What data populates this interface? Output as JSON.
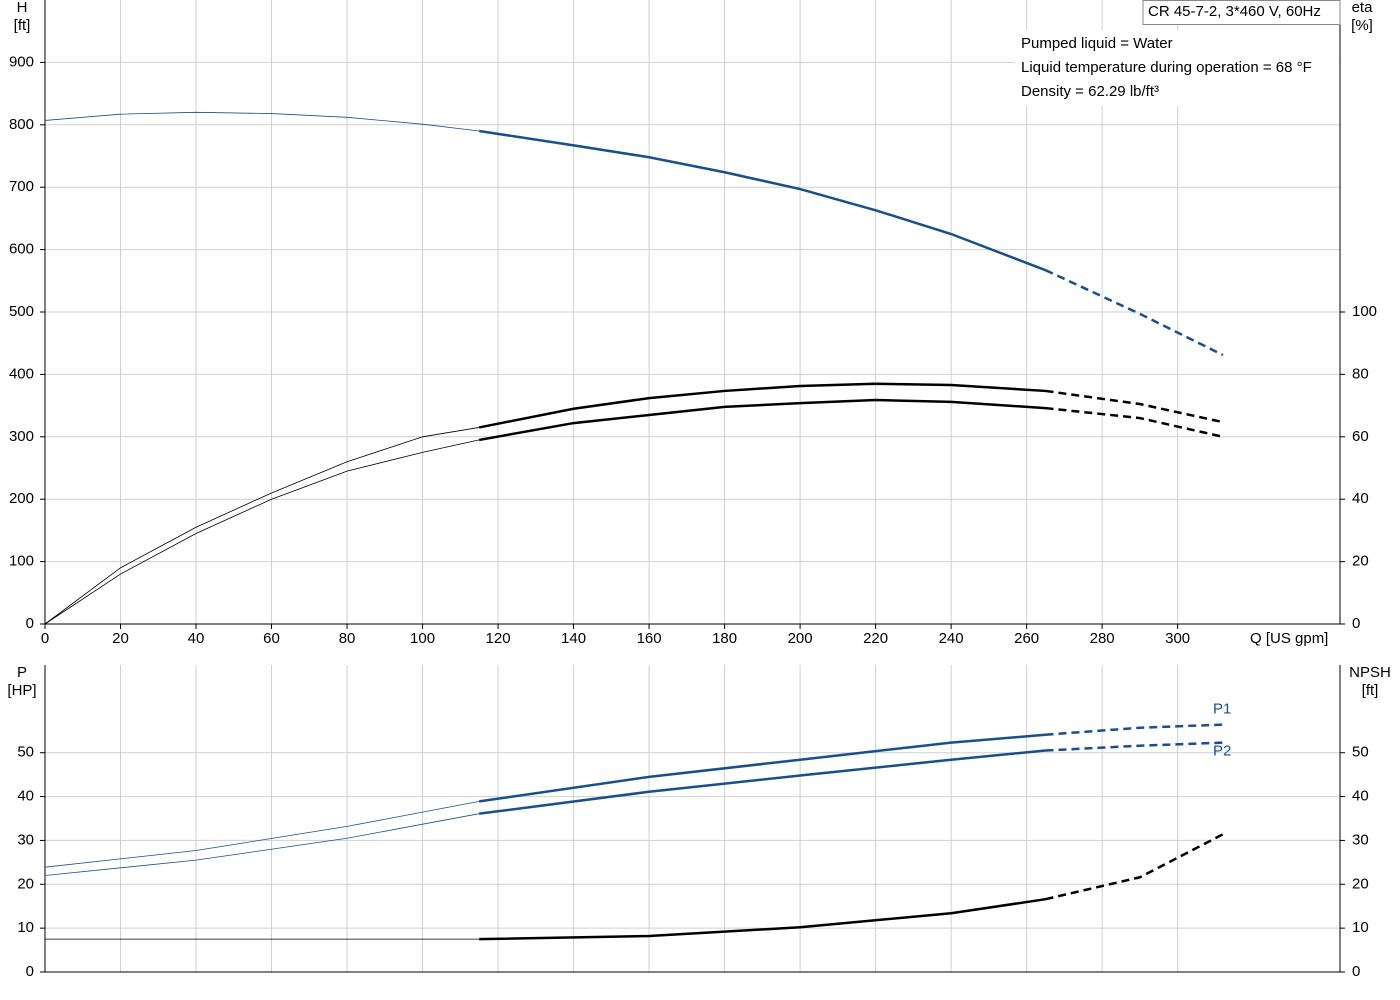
{
  "chart_data": [
    {
      "type": "line",
      "title": "CR 45-7-2, 3*460 V, 60Hz",
      "annotations": [
        "Pumped liquid = Water",
        "Liquid temperature during operation = 68 °F",
        "Density = 62.29 lb/ft³"
      ],
      "ylabel": [
        "H",
        "[ft]"
      ],
      "y2label": [
        "eta",
        "[%]"
      ],
      "xlabel": "Q [US gpm]",
      "xlim": [
        0,
        343
      ],
      "xticks": [
        0,
        20,
        40,
        60,
        80,
        100,
        120,
        140,
        160,
        180,
        200,
        220,
        240,
        260,
        280,
        300
      ],
      "ylim": [
        0,
        1000
      ],
      "yticks": [
        0,
        100,
        200,
        300,
        400,
        500,
        600,
        700,
        800,
        900
      ],
      "y2lim": [
        0,
        200
      ],
      "y2ticks": [
        0,
        20,
        40,
        60,
        80,
        100
      ],
      "grid": true,
      "series": [
        {
          "color": "#1a4f8b",
          "solid_from": 115,
          "dashed_from": 265,
          "x": [
            0,
            20,
            40,
            60,
            80,
            100,
            115,
            140,
            160,
            180,
            200,
            220,
            240,
            265,
            290,
            312
          ],
          "values": [
            807,
            817,
            820,
            818,
            812,
            801,
            790,
            767,
            748,
            724,
            697,
            663,
            625,
            567,
            497,
            431
          ]
        },
        {
          "color": "#000000",
          "axis": "y2",
          "solid_from": 115,
          "dashed_from": 265,
          "x": [
            0,
            20,
            40,
            60,
            80,
            100,
            115,
            140,
            160,
            180,
            200,
            220,
            240,
            265,
            290,
            312
          ],
          "values": [
            0,
            18,
            31,
            42,
            52,
            60,
            63,
            69,
            72.4,
            74.7,
            76.3,
            77,
            76.6,
            74.7,
            70.5,
            64.7
          ]
        },
        {
          "color": "#000000",
          "axis": "y2",
          "solid_from": 115,
          "dashed_from": 265,
          "x": [
            0,
            20,
            40,
            60,
            80,
            100,
            115,
            140,
            160,
            180,
            200,
            220,
            240,
            265,
            290,
            312
          ],
          "values": [
            0,
            16,
            29,
            40,
            49,
            55,
            59,
            64.4,
            67,
            69.6,
            70.8,
            71.8,
            71.2,
            69.2,
            66,
            60
          ]
        }
      ]
    },
    {
      "type": "line",
      "ylabel": [
        "P",
        "[HP]"
      ],
      "y2label": [
        "NPSH",
        "[ft]"
      ],
      "xlim": [
        0,
        343
      ],
      "ylim": [
        0,
        70
      ],
      "yticks": [
        0,
        10,
        20,
        30,
        40,
        50
      ],
      "y2lim": [
        0,
        70
      ],
      "y2ticks": [
        0,
        10,
        20,
        30,
        40,
        50
      ],
      "grid": true,
      "series": [
        {
          "name": "P1",
          "color": "#1a4f8b",
          "solid_from": 115,
          "dashed_from": 265,
          "x": [
            0,
            40,
            80,
            115,
            160,
            200,
            240,
            265,
            290,
            312
          ],
          "values": [
            23.9,
            27.7,
            33.2,
            38.9,
            44.5,
            48.4,
            52.3,
            54.1,
            55.7,
            56.4
          ]
        },
        {
          "name": "P2",
          "color": "#1a4f8b",
          "solid_from": 115,
          "dashed_from": 265,
          "x": [
            0,
            40,
            80,
            115,
            160,
            200,
            240,
            265,
            290,
            312
          ],
          "values": [
            22,
            25.5,
            30.5,
            36.1,
            41.1,
            44.8,
            48.4,
            50.5,
            51.6,
            52.3
          ]
        },
        {
          "color": "#000000",
          "axis": "y2",
          "solid_from": 115,
          "dashed_from": 265,
          "x": [
            0,
            40,
            80,
            115,
            160,
            200,
            240,
            265,
            290,
            312
          ],
          "values": [
            7.5,
            7.5,
            7.5,
            7.5,
            8.2,
            10.2,
            13.4,
            16.6,
            21.6,
            31.4
          ]
        }
      ]
    }
  ]
}
